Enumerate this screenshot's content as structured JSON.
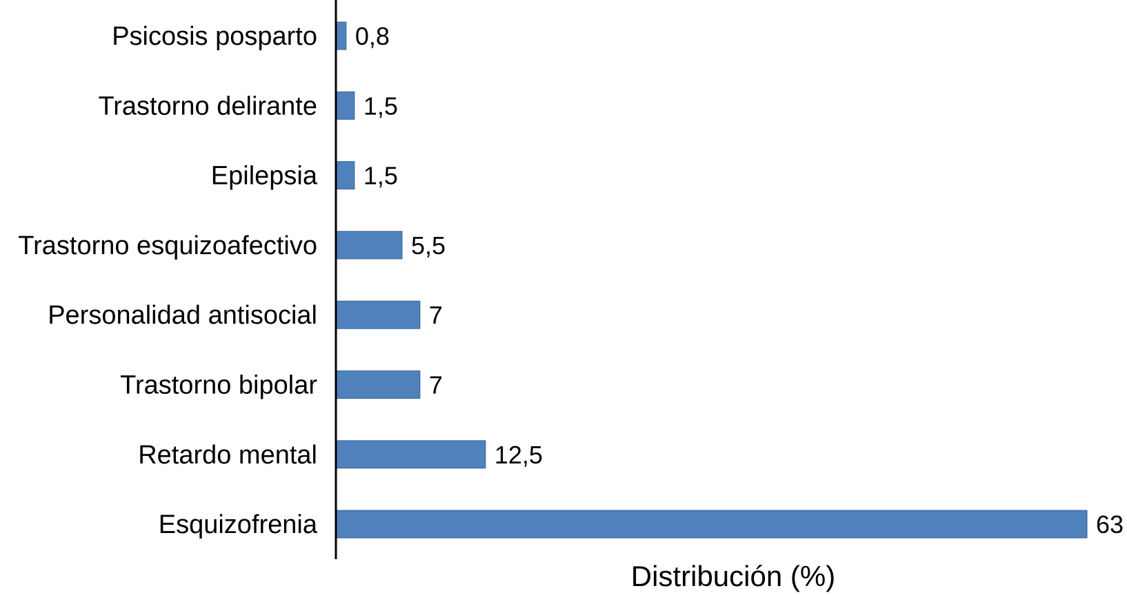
{
  "chart_data": {
    "type": "bar",
    "orientation": "horizontal",
    "categories": [
      "Psicosis posparto",
      "Trastorno delirante",
      "Epilepsia",
      "Trastorno esquizoafectivo",
      "Personalidad antisocial",
      "Trastorno bipolar",
      "Retardo mental",
      "Esquizofrenia"
    ],
    "values": [
      0.8,
      1.5,
      1.5,
      5.5,
      7,
      7,
      12.5,
      63
    ],
    "value_labels": [
      "0,8",
      "1,5",
      "1,5",
      "5,5",
      "7",
      "7",
      "12,5",
      "63"
    ],
    "xlabel": "Distribución (%)",
    "xlim": [
      0,
      63
    ],
    "grid": false,
    "legend": "none",
    "bar_color": "#4f81bd",
    "bar_edge_color": "#3a6599"
  }
}
